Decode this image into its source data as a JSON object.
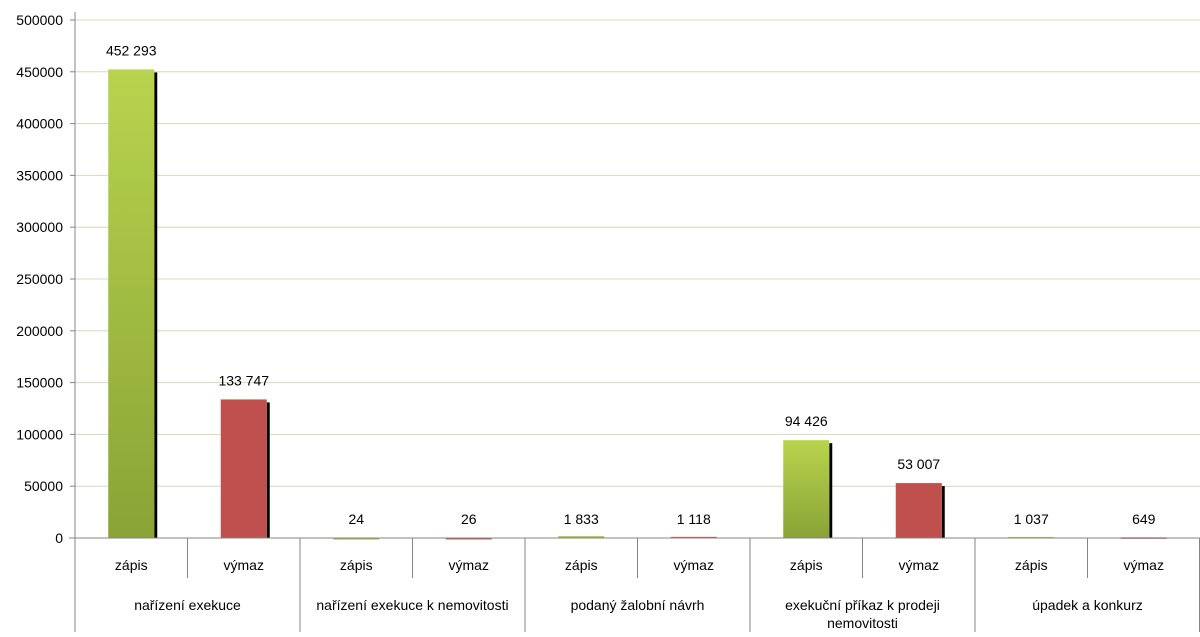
{
  "chart_data": {
    "type": "bar",
    "title": "",
    "xlabel": "",
    "ylabel": "",
    "ylim": [
      0,
      500000
    ],
    "y_ticks": [
      0,
      50000,
      100000,
      150000,
      200000,
      250000,
      300000,
      350000,
      400000,
      450000,
      500000
    ],
    "y_tick_labels": [
      "0",
      "50000",
      "100000",
      "150000",
      "200000",
      "250000",
      "300000",
      "350000",
      "400000",
      "450000",
      "500000"
    ],
    "grid": true,
    "legend": "none",
    "groups": [
      {
        "label": "nařízení exekuce",
        "bars": [
          {
            "label": "zápis",
            "value": 452293,
            "value_label": "452 293",
            "kind": "zapis"
          },
          {
            "label": "výmaz",
            "value": 133747,
            "value_label": "133 747",
            "kind": "vymaz"
          }
        ]
      },
      {
        "label": "nařízení exekuce k nemovitosti",
        "bars": [
          {
            "label": "zápis",
            "value": 24,
            "value_label": "24",
            "kind": "zapis"
          },
          {
            "label": "výmaz",
            "value": 26,
            "value_label": "26",
            "kind": "vymaz"
          }
        ]
      },
      {
        "label": "podaný žalobní návrh",
        "bars": [
          {
            "label": "zápis",
            "value": 1833,
            "value_label": "1 833",
            "kind": "zapis"
          },
          {
            "label": "výmaz",
            "value": 1118,
            "value_label": "1 118",
            "kind": "vymaz"
          }
        ]
      },
      {
        "label": "exekuční příkaz k prodeji nemovitosti",
        "bars": [
          {
            "label": "zápis",
            "value": 94426,
            "value_label": "94 426",
            "kind": "zapis"
          },
          {
            "label": "výmaz",
            "value": 53007,
            "value_label": "53 007",
            "kind": "vymaz"
          }
        ]
      },
      {
        "label": "úpadek a konkurz",
        "bars": [
          {
            "label": "zápis",
            "value": 1037,
            "value_label": "1 037",
            "kind": "zapis"
          },
          {
            "label": "výmaz",
            "value": 649,
            "value_label": "649",
            "kind": "vymaz"
          }
        ]
      }
    ],
    "colors": {
      "zapis_top": "#b8d44e",
      "zapis_bottom": "#8aa336",
      "vymaz": "#c0504d",
      "shadow": "#000000",
      "grid": "#d4dcb6",
      "axis": "#868686"
    }
  }
}
